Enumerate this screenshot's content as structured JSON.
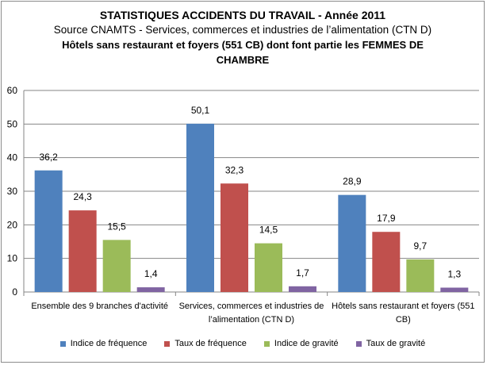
{
  "chart_data": {
    "type": "bar",
    "title": "STATISTIQUES ACCIDENTS DU TRAVAIL - Année 2011",
    "subtitle_1": "Source CNAMTS -  Services, commerces et industries de l’alimentation (CTN D)",
    "subtitle_2": "Hôtels sans restaurant et foyers (551 CB) dont font partie les FEMMES DE",
    "subtitle_3": "CHAMBRE",
    "categories": [
      [
        "Ensemble des 9 branches d'activité"
      ],
      [
        "Services, commerces et industries de",
        "l’alimentation (CTN D)"
      ],
      [
        "Hôtels sans restaurant et foyers (551",
        "CB)"
      ]
    ],
    "series": [
      {
        "name": "Indice de fréquence",
        "color": "#4f81bd",
        "values": [
          36.2,
          50.1,
          28.9
        ],
        "labels": [
          "36,2",
          "50,1",
          "28,9"
        ]
      },
      {
        "name": "Taux de fréquence",
        "color": "#c0504d",
        "values": [
          24.3,
          32.3,
          17.9
        ],
        "labels": [
          "24,3",
          "32,3",
          "17,9"
        ]
      },
      {
        "name": "Indice de gravité",
        "color": "#9bbb59",
        "values": [
          15.5,
          14.5,
          9.7
        ],
        "labels": [
          "15,5",
          "14,5",
          "9,7"
        ]
      },
      {
        "name": "Taux de gravité",
        "color": "#8064a2",
        "values": [
          1.4,
          1.7,
          1.3
        ],
        "labels": [
          "1,4",
          "1,7",
          "1,3"
        ]
      }
    ],
    "ylim": [
      0,
      60
    ],
    "yticks": [
      "0",
      "10",
      "20",
      "30",
      "40",
      "50",
      "60"
    ],
    "grid": true,
    "legend_position": "bottom"
  }
}
